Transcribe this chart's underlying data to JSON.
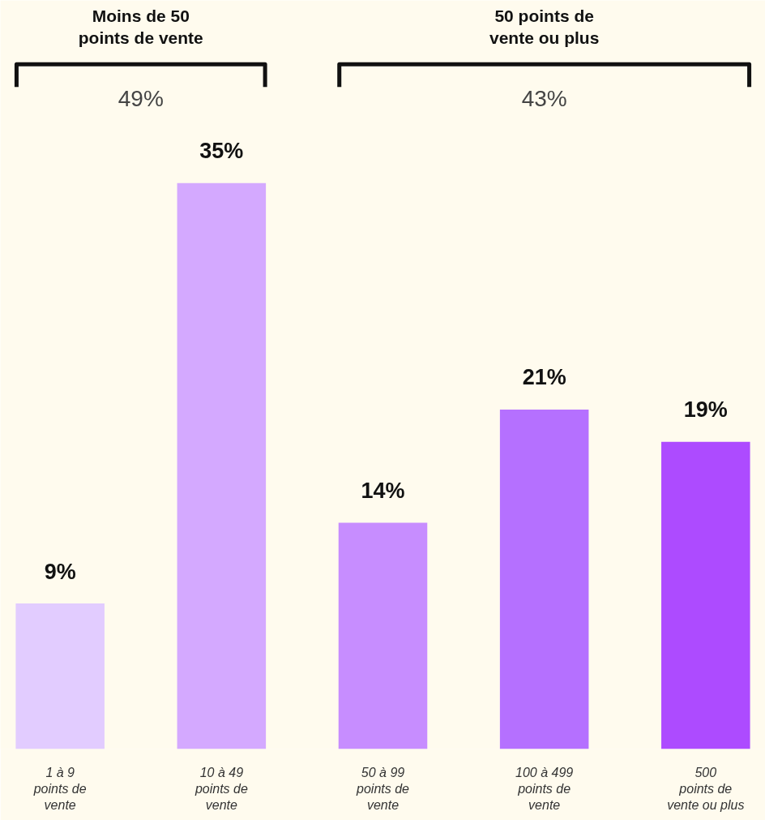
{
  "chart_data": {
    "type": "bar",
    "categories": [
      "1 à 9\npoints de\nvente",
      "10 à 49\npoints de\nvente",
      "50 à 99\npoints de\nvente",
      "100 à 499\npoints de\nvente",
      "500\npoints de\nvente ou plus"
    ],
    "values": [
      9,
      35,
      14,
      21,
      19
    ],
    "colors": [
      "#e2ccff",
      "#d4a9ff",
      "#c78dff",
      "#b570ff",
      "#ad4bff"
    ],
    "value_labels": [
      "9%",
      "35%",
      "14%",
      "21%",
      "19%"
    ],
    "annotations": [
      "Moins de 50\npoints de vente",
      "49%",
      "50 points de\nvente ou plus",
      "43%"
    ]
  }
}
